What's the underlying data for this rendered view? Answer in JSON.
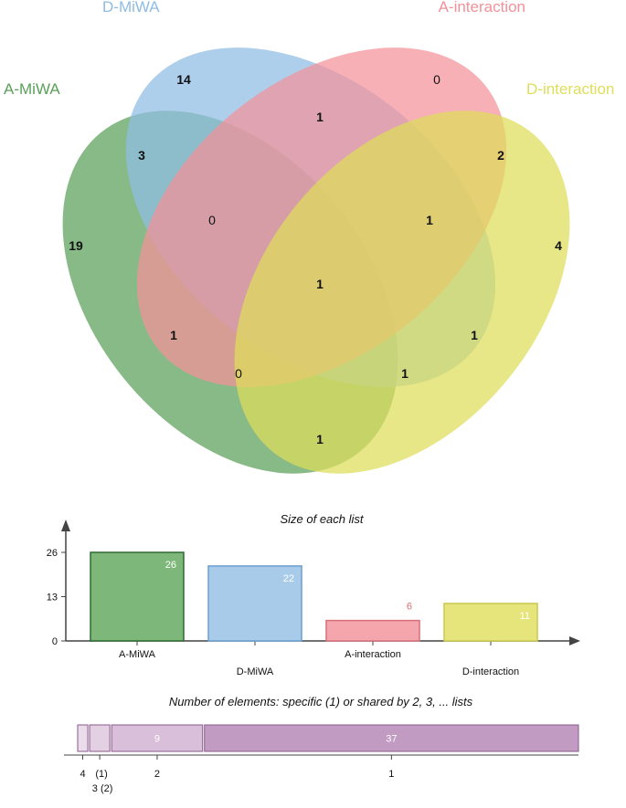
{
  "venn": {
    "sets": [
      {
        "name": "A-MiWA",
        "color": "#5aa05a"
      },
      {
        "name": "D-MiWA",
        "color": "#8fbce3"
      },
      {
        "name": "A-interaction",
        "color": "#f4919a"
      },
      {
        "name": "D-interaction",
        "color": "#dede5a"
      }
    ],
    "regions": [
      {
        "sets": [
          "D-MiWA"
        ],
        "count": "14",
        "bold": true
      },
      {
        "sets": [
          "A-interaction"
        ],
        "count": "0",
        "bold": false
      },
      {
        "sets": [
          "D-MiWA",
          "A-interaction"
        ],
        "count": "1",
        "bold": true
      },
      {
        "sets": [
          "A-MiWA",
          "D-MiWA"
        ],
        "count": "3",
        "bold": true
      },
      {
        "sets": [
          "A-interaction",
          "D-interaction"
        ],
        "count": "2",
        "bold": true
      },
      {
        "sets": [
          "A-MiWA",
          "D-MiWA",
          "A-interaction"
        ],
        "count": "0",
        "bold": false
      },
      {
        "sets": [
          "D-MiWA",
          "A-interaction",
          "D-interaction"
        ],
        "count": "1",
        "bold": true
      },
      {
        "sets": [
          "A-MiWA"
        ],
        "count": "19",
        "bold": true
      },
      {
        "sets": [
          "D-interaction"
        ],
        "count": "4",
        "bold": true
      },
      {
        "sets": [
          "A-MiWA",
          "D-MiWA",
          "A-interaction",
          "D-interaction"
        ],
        "count": "1",
        "bold": true
      },
      {
        "sets": [
          "A-MiWA",
          "A-interaction"
        ],
        "count": "1",
        "bold": true
      },
      {
        "sets": [
          "D-MiWA",
          "D-interaction"
        ],
        "count": "1",
        "bold": true
      },
      {
        "sets": [
          "A-MiWA",
          "A-interaction",
          "D-interaction"
        ],
        "count": "0",
        "bold": false
      },
      {
        "sets": [
          "A-MiWA",
          "D-MiWA",
          "D-interaction"
        ],
        "count": "1",
        "bold": true
      },
      {
        "sets": [
          "A-MiWA",
          "D-interaction"
        ],
        "count": "1",
        "bold": true
      }
    ]
  },
  "chart_data": [
    {
      "type": "bar",
      "title": "Size of each list",
      "categories": [
        "A-MiWA",
        "D-MiWA",
        "A-interaction",
        "D-interaction"
      ],
      "values": [
        26,
        22,
        6,
        11
      ],
      "value_labels": [
        "26",
        "22",
        "6",
        "11"
      ],
      "colors": [
        "#7db87a",
        "#a9cbea",
        "#f5a5ac",
        "#e6e57c"
      ],
      "border_colors": [
        "#2e6b2e",
        "#6a9fd0",
        "#d8707a",
        "#c8c850"
      ],
      "ylim": [
        0,
        26
      ],
      "yticks": [
        "0",
        "13",
        "26"
      ]
    },
    {
      "type": "bar",
      "orientation": "horizontal-stacked",
      "title": "Number of elements: specific (1) or shared by 2, 3, ... lists",
      "segments": [
        {
          "label": "4",
          "value": 1,
          "show_value": false,
          "color": "#eadcea"
        },
        {
          "label": "3 (2)",
          "tick_top": "(1)",
          "tick_bottom": "3 (2)",
          "value": 2,
          "show_value": false,
          "color": "#e3d0e3"
        },
        {
          "label": "2",
          "value": 9,
          "show_value": true,
          "color": "#d9bfd9"
        },
        {
          "label": "1",
          "value": 37,
          "show_value": true,
          "color": "#c29bc2"
        }
      ],
      "ticks": [
        "4",
        "(1)",
        "3 (2)",
        "2",
        "1"
      ]
    }
  ]
}
